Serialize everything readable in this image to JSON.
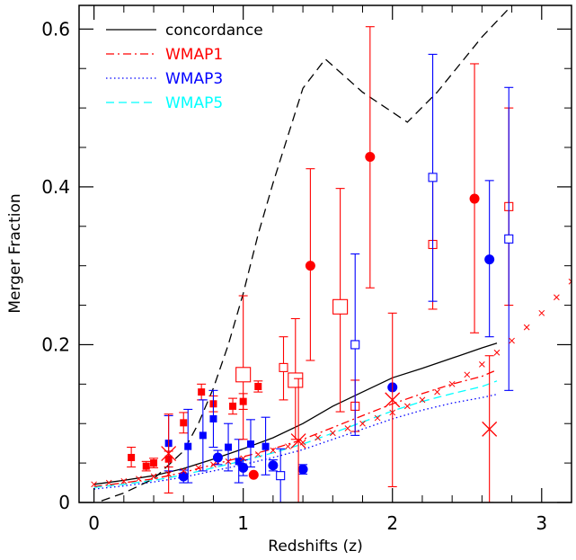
{
  "chart_data": {
    "type": "scatter",
    "xlabel": "Redshifts (z)",
    "ylabel": "Merger Fraction",
    "xlim": [
      -0.1,
      3.2
    ],
    "ylim": [
      0,
      0.63
    ],
    "xticks": [
      0,
      1,
      2,
      3
    ],
    "yticks": [
      0,
      0.2,
      0.4,
      0.6
    ],
    "xtick_labels": [
      "0",
      "1",
      "2",
      "3"
    ],
    "ytick_labels": [
      "0",
      "0.2",
      "0.4",
      "0.6"
    ],
    "legend": {
      "position": "top-left",
      "entries": [
        {
          "label": "concordance",
          "color": "#000000",
          "dash": "solid"
        },
        {
          "label": "WMAP1",
          "color": "#ff0000",
          "dash": "dashdot"
        },
        {
          "label": "WMAP3",
          "color": "#0000ff",
          "dash": "dotted"
        },
        {
          "label": "WMAP5",
          "color": "#00ffff",
          "dash": "dashed"
        }
      ]
    },
    "lines": [
      {
        "color": "#000000",
        "dash": "solid",
        "points": [
          [
            0,
            0.023
          ],
          [
            0.2,
            0.028
          ],
          [
            0.4,
            0.034
          ],
          [
            0.6,
            0.043
          ],
          [
            0.8,
            0.055
          ],
          [
            1.0,
            0.068
          ],
          [
            1.2,
            0.082
          ],
          [
            1.4,
            0.1
          ],
          [
            1.6,
            0.122
          ],
          [
            1.8,
            0.14
          ],
          [
            2.0,
            0.158
          ],
          [
            2.2,
            0.17
          ],
          [
            2.4,
            0.183
          ],
          [
            2.6,
            0.196
          ],
          [
            2.7,
            0.202
          ]
        ]
      },
      {
        "color": "#ff0000",
        "dash": "dashdot",
        "points": [
          [
            0,
            0.02
          ],
          [
            0.2,
            0.025
          ],
          [
            0.4,
            0.03
          ],
          [
            0.6,
            0.038
          ],
          [
            0.8,
            0.048
          ],
          [
            1.0,
            0.058
          ],
          [
            1.2,
            0.068
          ],
          [
            1.4,
            0.08
          ],
          [
            1.6,
            0.095
          ],
          [
            1.8,
            0.11
          ],
          [
            2.0,
            0.125
          ],
          [
            2.2,
            0.138
          ],
          [
            2.4,
            0.15
          ],
          [
            2.6,
            0.16
          ],
          [
            2.7,
            0.168
          ]
        ]
      },
      {
        "color": "#0000ff",
        "dash": "dotted",
        "points": [
          [
            0,
            0.017
          ],
          [
            0.2,
            0.021
          ],
          [
            0.4,
            0.026
          ],
          [
            0.6,
            0.032
          ],
          [
            0.8,
            0.04
          ],
          [
            1.0,
            0.048
          ],
          [
            1.2,
            0.057
          ],
          [
            1.4,
            0.067
          ],
          [
            1.6,
            0.08
          ],
          [
            1.8,
            0.093
          ],
          [
            2.0,
            0.106
          ],
          [
            2.2,
            0.117
          ],
          [
            2.4,
            0.126
          ],
          [
            2.6,
            0.133
          ],
          [
            2.7,
            0.137
          ]
        ]
      },
      {
        "color": "#00ffff",
        "dash": "dashed",
        "points": [
          [
            0,
            0.019
          ],
          [
            0.2,
            0.023
          ],
          [
            0.4,
            0.028
          ],
          [
            0.6,
            0.035
          ],
          [
            0.8,
            0.044
          ],
          [
            1.0,
            0.053
          ],
          [
            1.2,
            0.063
          ],
          [
            1.4,
            0.074
          ],
          [
            1.6,
            0.088
          ],
          [
            1.8,
            0.102
          ],
          [
            2.0,
            0.116
          ],
          [
            2.2,
            0.128
          ],
          [
            2.4,
            0.138
          ],
          [
            2.6,
            0.147
          ],
          [
            2.7,
            0.154
          ]
        ]
      },
      {
        "color": "#000000",
        "dash": "longdash",
        "points": [
          [
            0.05,
            0.002
          ],
          [
            0.2,
            0.012
          ],
          [
            0.4,
            0.03
          ],
          [
            0.6,
            0.065
          ],
          [
            0.7,
            0.1
          ],
          [
            0.8,
            0.145
          ],
          [
            0.9,
            0.2
          ],
          [
            1.0,
            0.265
          ],
          [
            1.1,
            0.34
          ],
          [
            1.2,
            0.405
          ],
          [
            1.3,
            0.465
          ],
          [
            1.4,
            0.525
          ],
          [
            1.55,
            0.562
          ],
          [
            1.8,
            0.52
          ],
          [
            2.1,
            0.482
          ],
          [
            2.3,
            0.52
          ],
          [
            2.6,
            0.59
          ],
          [
            2.8,
            0.63
          ]
        ]
      }
    ],
    "series": [
      {
        "marker": "filled-square",
        "color": "#ff0000",
        "points": [
          {
            "x": 0.25,
            "y": 0.057,
            "lo": 0.045,
            "hi": 0.07
          },
          {
            "x": 0.35,
            "y": 0.046,
            "lo": 0.04,
            "hi": 0.052
          },
          {
            "x": 0.4,
            "y": 0.05,
            "lo": 0.044,
            "hi": 0.056
          },
          {
            "x": 0.5,
            "y": 0.055,
            "lo": 0.045,
            "hi": 0.065
          },
          {
            "x": 0.6,
            "y": 0.101,
            "lo": 0.088,
            "hi": 0.114
          },
          {
            "x": 0.72,
            "y": 0.14,
            "lo": 0.13,
            "hi": 0.15
          },
          {
            "x": 0.8,
            "y": 0.125,
            "lo": 0.115,
            "hi": 0.135
          },
          {
            "x": 0.93,
            "y": 0.122,
            "lo": 0.112,
            "hi": 0.132
          },
          {
            "x": 1.0,
            "y": 0.128,
            "lo": 0.118,
            "hi": 0.138
          },
          {
            "x": 1.1,
            "y": 0.147,
            "lo": 0.14,
            "hi": 0.154
          }
        ]
      },
      {
        "marker": "filled-square",
        "color": "#0000ff",
        "points": [
          {
            "x": 0.5,
            "y": 0.075,
            "lo": 0.04,
            "hi": 0.11
          },
          {
            "x": 0.63,
            "y": 0.071,
            "lo": 0.025,
            "hi": 0.118
          },
          {
            "x": 0.73,
            "y": 0.085,
            "lo": 0.04,
            "hi": 0.13
          },
          {
            "x": 0.8,
            "y": 0.106,
            "lo": 0.07,
            "hi": 0.142
          },
          {
            "x": 0.9,
            "y": 0.07,
            "lo": 0.04,
            "hi": 0.1
          },
          {
            "x": 0.97,
            "y": 0.052,
            "lo": 0.025,
            "hi": 0.08
          },
          {
            "x": 1.05,
            "y": 0.074,
            "lo": 0.045,
            "hi": 0.105
          },
          {
            "x": 1.15,
            "y": 0.071,
            "lo": 0.035,
            "hi": 0.108
          }
        ]
      },
      {
        "marker": "filled-circle",
        "color": "#ff0000",
        "points": [
          {
            "x": 1.07,
            "y": 0.035,
            "lo": 0.035,
            "hi": 0.035
          },
          {
            "x": 1.45,
            "y": 0.3,
            "lo": 0.18,
            "hi": 0.423
          },
          {
            "x": 1.85,
            "y": 0.438,
            "lo": 0.272,
            "hi": 0.603
          },
          {
            "x": 2.55,
            "y": 0.385,
            "lo": 0.215,
            "hi": 0.556
          }
        ]
      },
      {
        "marker": "filled-circle",
        "color": "#0000ff",
        "points": [
          {
            "x": 0.6,
            "y": 0.033,
            "lo": 0.025,
            "hi": 0.041
          },
          {
            "x": 0.83,
            "y": 0.057,
            "lo": 0.048,
            "hi": 0.066
          },
          {
            "x": 1.0,
            "y": 0.044,
            "lo": 0.034,
            "hi": 0.054
          },
          {
            "x": 1.2,
            "y": 0.047,
            "lo": 0.04,
            "hi": 0.054
          },
          {
            "x": 1.4,
            "y": 0.042,
            "lo": 0.036,
            "hi": 0.048
          },
          {
            "x": 2.0,
            "y": 0.146,
            "lo": 0.146,
            "hi": 0.146
          },
          {
            "x": 2.65,
            "y": 0.308,
            "lo": 0.21,
            "hi": 0.408
          }
        ]
      },
      {
        "marker": "open-square",
        "color": "#ff0000",
        "points": [
          {
            "x": 1.0,
            "y": 0.162,
            "lo": 0.08,
            "hi": 0.262
          },
          {
            "x": 1.35,
            "y": 0.155,
            "lo": 0.08,
            "hi": 0.233
          },
          {
            "x": 1.27,
            "y": 0.171,
            "lo": 0.13,
            "hi": 0.21
          },
          {
            "x": 1.65,
            "y": 0.248,
            "lo": 0.115,
            "hi": 0.398
          },
          {
            "x": 1.75,
            "y": 0.122,
            "lo": 0.09,
            "hi": 0.155
          },
          {
            "x": 2.27,
            "y": 0.327,
            "lo": 0.245,
            "hi": 0.41
          },
          {
            "x": 2.78,
            "y": 0.375,
            "lo": 0.25,
            "hi": 0.5
          }
        ]
      },
      {
        "marker": "open-square",
        "color": "#0000ff",
        "points": [
          {
            "x": 1.25,
            "y": 0.034,
            "lo": 0.0,
            "hi": 0.068
          },
          {
            "x": 1.75,
            "y": 0.2,
            "lo": 0.085,
            "hi": 0.315
          },
          {
            "x": 2.27,
            "y": 0.412,
            "lo": 0.255,
            "hi": 0.568
          },
          {
            "x": 2.78,
            "y": 0.334,
            "lo": 0.142,
            "hi": 0.526
          }
        ]
      },
      {
        "marker": "large-cross",
        "color": "#ff0000",
        "points": [
          {
            "x": 0.5,
            "y": 0.062,
            "lo": 0.012,
            "hi": 0.112
          },
          {
            "x": 1.37,
            "y": 0.078,
            "lo": 0.0,
            "hi": 0.157
          },
          {
            "x": 2.0,
            "y": 0.13,
            "lo": 0.02,
            "hi": 0.24
          },
          {
            "x": 2.65,
            "y": 0.093,
            "lo": 0.0,
            "hi": 0.186
          }
        ]
      },
      {
        "marker": "small-cross",
        "color": "#ff0000",
        "points": [
          {
            "x": 0.0,
            "y": 0.023
          },
          {
            "x": 0.1,
            "y": 0.025
          },
          {
            "x": 0.2,
            "y": 0.027
          },
          {
            "x": 0.3,
            "y": 0.03
          },
          {
            "x": 0.4,
            "y": 0.033
          },
          {
            "x": 0.5,
            "y": 0.036
          },
          {
            "x": 0.6,
            "y": 0.04
          },
          {
            "x": 0.7,
            "y": 0.044
          },
          {
            "x": 0.8,
            "y": 0.048
          },
          {
            "x": 0.9,
            "y": 0.052
          },
          {
            "x": 1.0,
            "y": 0.056
          },
          {
            "x": 1.1,
            "y": 0.061
          },
          {
            "x": 1.2,
            "y": 0.066
          },
          {
            "x": 1.3,
            "y": 0.071
          },
          {
            "x": 1.4,
            "y": 0.076
          },
          {
            "x": 1.5,
            "y": 0.082
          },
          {
            "x": 1.6,
            "y": 0.088
          },
          {
            "x": 1.7,
            "y": 0.094
          },
          {
            "x": 1.8,
            "y": 0.1
          },
          {
            "x": 1.9,
            "y": 0.107
          },
          {
            "x": 2.0,
            "y": 0.114
          },
          {
            "x": 2.1,
            "y": 0.122
          },
          {
            "x": 2.2,
            "y": 0.13
          },
          {
            "x": 2.3,
            "y": 0.14
          },
          {
            "x": 2.4,
            "y": 0.15
          },
          {
            "x": 2.5,
            "y": 0.162
          },
          {
            "x": 2.6,
            "y": 0.175
          },
          {
            "x": 2.7,
            "y": 0.19
          },
          {
            "x": 2.8,
            "y": 0.205
          },
          {
            "x": 2.9,
            "y": 0.222
          },
          {
            "x": 3.0,
            "y": 0.24
          },
          {
            "x": 3.1,
            "y": 0.26
          },
          {
            "x": 3.2,
            "y": 0.28
          }
        ]
      }
    ]
  }
}
